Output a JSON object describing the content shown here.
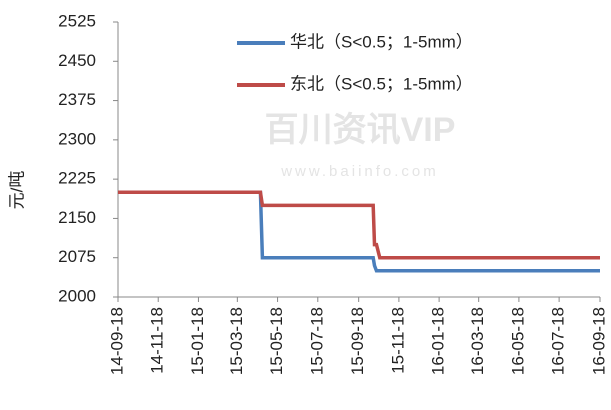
{
  "chart_data": {
    "type": "line",
    "y_label": "元/吨",
    "watermark": "百川资讯VIP",
    "watermark_url": "www.baiinfo.com",
    "x": [
      "14-09-18",
      "15-04-22",
      "15-04-25",
      "15-10-10",
      "15-10-12",
      "15-10-15",
      "15-10-20",
      "16-09-18"
    ],
    "series": [
      {
        "name": "华北（S<0.5；1-5mm）",
        "color": "#4a7ebb",
        "values": [
          2200,
          2200,
          2075,
          2075,
          2060,
          2050,
          2050,
          2050
        ]
      },
      {
        "name": "东北（S<0.5；1-5mm）",
        "color": "#be4b48",
        "values": [
          2200,
          2200,
          2175,
          2175,
          2100,
          2100,
          2075,
          2075
        ]
      }
    ],
    "xlim": [
      "14-09-18",
      "16-09-18"
    ],
    "xticks": [
      "14-09-18",
      "14-11-18",
      "15-01-18",
      "15-03-18",
      "15-05-18",
      "15-07-18",
      "15-09-18",
      "15-11-18",
      "16-01-18",
      "16-03-18",
      "16-05-18",
      "16-07-18",
      "16-09-18"
    ],
    "ylim": [
      2000,
      2525
    ],
    "yticks": [
      2000,
      2075,
      2150,
      2225,
      2300,
      2375,
      2450,
      2525
    ],
    "grid": false,
    "legend": "top-right"
  }
}
